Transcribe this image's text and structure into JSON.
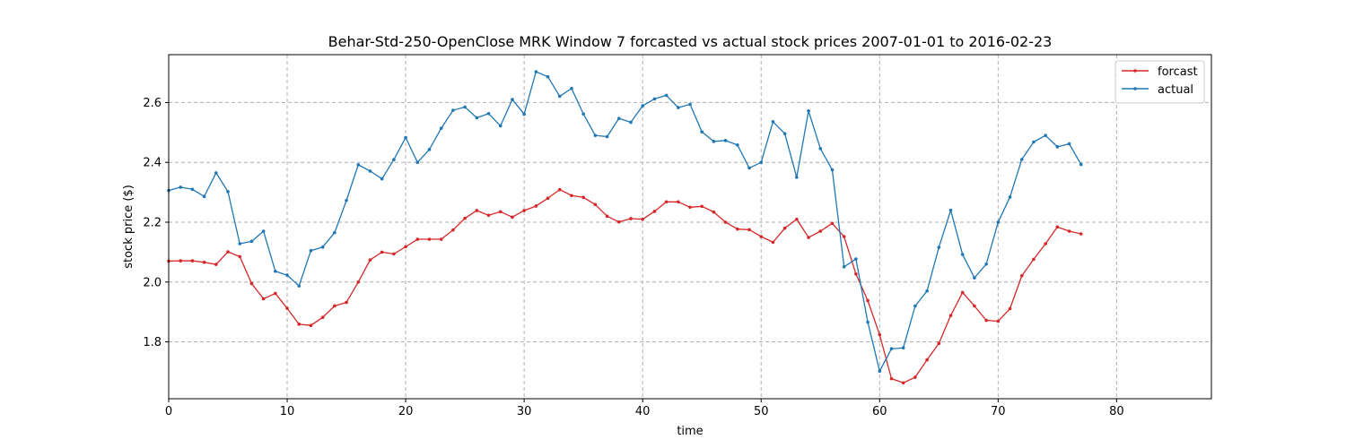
{
  "chart_data": {
    "type": "line",
    "title": "Behar-Std-250-OpenClose MRK Window 7 forcasted vs actual stock prices 2007-01-01 to 2016-02-23",
    "xlabel": "time",
    "ylabel": "stock price ($)",
    "xlim": [
      0,
      88
    ],
    "ylim": [
      1.61,
      2.76
    ],
    "xticks": [
      0,
      10,
      20,
      30,
      40,
      50,
      60,
      70,
      80
    ],
    "yticks": [
      1.8,
      2.0,
      2.2,
      2.4,
      2.6
    ],
    "xtick_labels": [
      "0",
      "10",
      "20",
      "30",
      "40",
      "50",
      "60",
      "70",
      "80"
    ],
    "ytick_labels": [
      "1.8",
      "2.0",
      "2.2",
      "2.4",
      "2.6"
    ],
    "grid": true,
    "legend_position": "top-right",
    "series": [
      {
        "name": "forcast",
        "color": "#d62728",
        "values": [
          2.07,
          2.071,
          2.071,
          2.066,
          2.059,
          2.101,
          2.085,
          1.995,
          1.944,
          1.962,
          1.912,
          1.859,
          1.855,
          1.882,
          1.92,
          1.932,
          2.0,
          2.074,
          2.1,
          2.094,
          2.118,
          2.143,
          2.143,
          2.143,
          2.174,
          2.213,
          2.239,
          2.223,
          2.235,
          2.217,
          2.239,
          2.254,
          2.28,
          2.309,
          2.289,
          2.283,
          2.259,
          2.22,
          2.201,
          2.212,
          2.21,
          2.236,
          2.268,
          2.268,
          2.25,
          2.253,
          2.234,
          2.2,
          2.177,
          2.175,
          2.152,
          2.133,
          2.18,
          2.21,
          2.149,
          2.17,
          2.196,
          2.152,
          2.027,
          1.938,
          1.824,
          1.677,
          1.663,
          1.682,
          1.74,
          1.795,
          1.888,
          1.965,
          1.92,
          1.872,
          1.869,
          1.911,
          2.021,
          2.076,
          2.128,
          2.184,
          2.17,
          2.161
        ]
      },
      {
        "name": "actual",
        "color": "#1f77b4",
        "values": [
          2.306,
          2.317,
          2.31,
          2.286,
          2.365,
          2.302,
          2.128,
          2.136,
          2.17,
          2.036,
          2.023,
          1.987,
          2.105,
          2.117,
          2.165,
          2.273,
          2.392,
          2.371,
          2.345,
          2.409,
          2.483,
          2.4,
          2.443,
          2.514,
          2.574,
          2.585,
          2.549,
          2.563,
          2.522,
          2.61,
          2.561,
          2.703,
          2.686,
          2.621,
          2.647,
          2.562,
          2.49,
          2.486,
          2.547,
          2.534,
          2.589,
          2.612,
          2.624,
          2.583,
          2.594,
          2.502,
          2.47,
          2.473,
          2.458,
          2.381,
          2.4,
          2.536,
          2.496,
          2.35,
          2.572,
          2.446,
          2.375,
          2.051,
          2.077,
          1.866,
          1.702,
          1.777,
          1.78,
          1.92,
          1.97,
          2.116,
          2.24,
          2.092,
          2.014,
          2.06,
          2.2,
          2.284,
          2.41,
          2.468,
          2.49,
          2.452,
          2.462,
          2.393
        ]
      }
    ]
  }
}
